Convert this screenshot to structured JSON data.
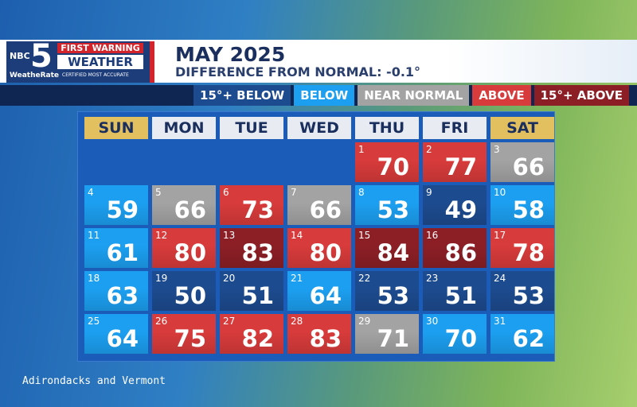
{
  "brand": {
    "network": "NBC",
    "channel": "5",
    "line1": "FIRST WARNING",
    "line2": "WEATHER",
    "tag1": "WeatheRate",
    "tag2": "CERTIFIED MOST ACCURATE"
  },
  "header": {
    "title": "MAY 2025",
    "subtitle": "DIFFERENCE FROM NORMAL:",
    "departure": "-0.1°"
  },
  "legend": [
    {
      "name": "15°+ BELOW",
      "color": "#1d4b8f"
    },
    {
      "name": "BELOW",
      "color": "#1c9ff0"
    },
    {
      "name": "NEAR NORMAL",
      "color": "#a3a3a3"
    },
    {
      "name": "ABOVE",
      "color": "#d83b3b"
    },
    {
      "name": "15°+ ABOVE",
      "color": "#8c1f26"
    }
  ],
  "weekdays": [
    {
      "name": "SUN",
      "weekend": true
    },
    {
      "name": "MON",
      "weekend": false
    },
    {
      "name": "TUE",
      "weekend": false
    },
    {
      "name": "WED",
      "weekend": false
    },
    {
      "name": "THU",
      "weekend": false
    },
    {
      "name": "FRI",
      "weekend": false
    },
    {
      "name": "SAT",
      "weekend": true
    }
  ],
  "weeks": [
    [
      null,
      null,
      null,
      null,
      {
        "day": 1,
        "temp": 70,
        "category": 3
      },
      {
        "day": 2,
        "temp": 77,
        "category": 3
      },
      {
        "day": 3,
        "temp": 66,
        "category": 2
      }
    ],
    [
      {
        "day": 4,
        "temp": 59,
        "category": 1
      },
      {
        "day": 5,
        "temp": 66,
        "category": 2
      },
      {
        "day": 6,
        "temp": 73,
        "category": 3
      },
      {
        "day": 7,
        "temp": 66,
        "category": 2
      },
      {
        "day": 8,
        "temp": 53,
        "category": 1
      },
      {
        "day": 9,
        "temp": 49,
        "category": 0
      },
      {
        "day": 10,
        "temp": 58,
        "category": 1
      }
    ],
    [
      {
        "day": 11,
        "temp": 61,
        "category": 1
      },
      {
        "day": 12,
        "temp": 80,
        "category": 3
      },
      {
        "day": 13,
        "temp": 83,
        "category": 4
      },
      {
        "day": 14,
        "temp": 80,
        "category": 3
      },
      {
        "day": 15,
        "temp": 84,
        "category": 4
      },
      {
        "day": 16,
        "temp": 86,
        "category": 4
      },
      {
        "day": 17,
        "temp": 78,
        "category": 3
      }
    ],
    [
      {
        "day": 18,
        "temp": 63,
        "category": 1
      },
      {
        "day": 19,
        "temp": 50,
        "category": 0
      },
      {
        "day": 20,
        "temp": 51,
        "category": 0
      },
      {
        "day": 21,
        "temp": 64,
        "category": 1
      },
      {
        "day": 22,
        "temp": 53,
        "category": 0
      },
      {
        "day": 23,
        "temp": 51,
        "category": 0
      },
      {
        "day": 24,
        "temp": 53,
        "category": 0
      }
    ],
    [
      {
        "day": 25,
        "temp": 64,
        "category": 1
      },
      {
        "day": 26,
        "temp": 75,
        "category": 3
      },
      {
        "day": 27,
        "temp": 82,
        "category": 3
      },
      {
        "day": 28,
        "temp": 83,
        "category": 3
      },
      {
        "day": 29,
        "temp": 71,
        "category": 2
      },
      {
        "day": 30,
        "temp": 70,
        "category": 1
      },
      {
        "day": 31,
        "temp": 62,
        "category": 1
      }
    ]
  ],
  "footer": "Adirondacks and Vermont"
}
